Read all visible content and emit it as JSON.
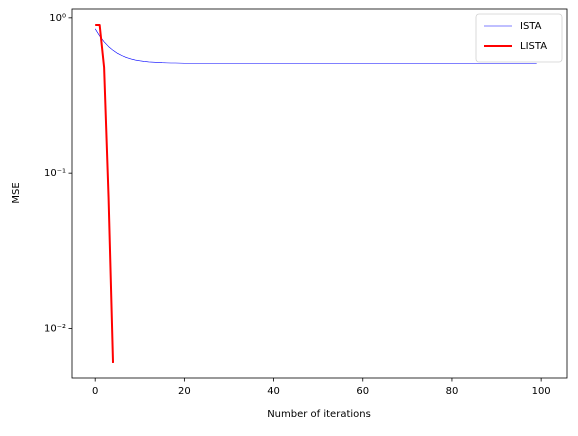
{
  "chart_data": {
    "type": "line",
    "xlabel": "Number of iterations",
    "ylabel": "MSE",
    "xlim": [
      -5.2,
      105.8
    ],
    "xticks": [
      0,
      20,
      40,
      60,
      80,
      100
    ],
    "ylim": [
      0.0048,
      1.14
    ],
    "ylog": true,
    "yticks": [
      {
        "value": 0.01,
        "label": "10⁻²"
      },
      {
        "value": 0.1,
        "label": "10⁻¹"
      },
      {
        "value": 1,
        "label": "10⁰"
      }
    ],
    "legend": "upper right",
    "series": [
      {
        "name": "ISTA",
        "color": "#0000ff",
        "width": 0.6,
        "x": [
          0,
          1,
          2,
          3,
          4,
          5,
          6,
          7,
          8,
          9,
          10,
          11,
          12,
          13,
          14,
          15,
          16,
          17,
          18,
          19,
          20,
          21,
          22,
          23,
          24,
          25,
          26,
          27,
          28,
          29,
          30,
          31,
          32,
          33,
          34,
          35,
          36,
          37,
          38,
          39,
          40,
          41,
          42,
          43,
          44,
          45,
          46,
          47,
          48,
          49,
          50,
          51,
          52,
          53,
          54,
          55,
          56,
          57,
          58,
          59,
          60,
          61,
          62,
          63,
          64,
          65,
          66,
          67,
          68,
          69,
          70,
          71,
          72,
          73,
          74,
          75,
          76,
          77,
          78,
          79,
          80,
          81,
          82,
          83,
          84,
          85,
          86,
          87,
          88,
          89,
          90,
          91,
          92,
          93,
          94,
          95,
          96,
          97,
          98,
          99
        ],
        "values": [
          0.85,
          0.765,
          0.701,
          0.653,
          0.618,
          0.591,
          0.571,
          0.555,
          0.544,
          0.535,
          0.529,
          0.524,
          0.52,
          0.518,
          0.516,
          0.514,
          0.513,
          0.512,
          0.512,
          0.511,
          0.51,
          0.51,
          0.51,
          0.51,
          0.51,
          0.51,
          0.51,
          0.51,
          0.51,
          0.51,
          0.51,
          0.51,
          0.51,
          0.51,
          0.51,
          0.51,
          0.51,
          0.51,
          0.51,
          0.51,
          0.51,
          0.51,
          0.51,
          0.51,
          0.51,
          0.51,
          0.51,
          0.51,
          0.51,
          0.51,
          0.51,
          0.51,
          0.51,
          0.51,
          0.51,
          0.51,
          0.51,
          0.51,
          0.51,
          0.51,
          0.51,
          0.51,
          0.51,
          0.51,
          0.51,
          0.51,
          0.51,
          0.51,
          0.51,
          0.51,
          0.51,
          0.51,
          0.51,
          0.51,
          0.51,
          0.51,
          0.51,
          0.51,
          0.51,
          0.51,
          0.51,
          0.51,
          0.51,
          0.51,
          0.51,
          0.51,
          0.51,
          0.51,
          0.51,
          0.51,
          0.51,
          0.51,
          0.51,
          0.51,
          0.51,
          0.51,
          0.51,
          0.51,
          0.51,
          0.51
        ]
      },
      {
        "name": "LISTA",
        "color": "#ff0000",
        "width": 2,
        "x": [
          0,
          1,
          2,
          3,
          4
        ],
        "values": [
          0.9,
          0.9,
          0.48,
          0.07,
          0.006
        ]
      }
    ]
  }
}
